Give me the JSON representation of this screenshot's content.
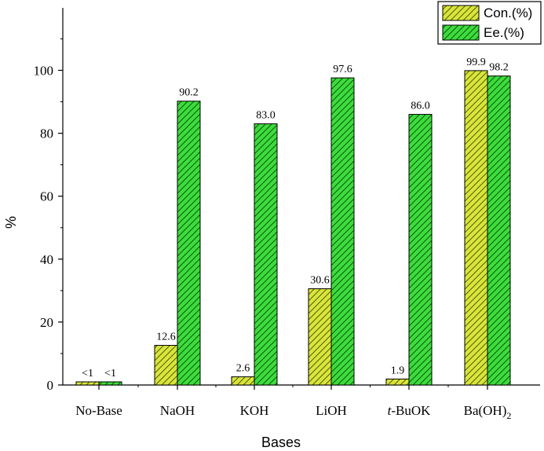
{
  "chart_data": {
    "type": "bar",
    "title": "",
    "xlabel": "Bases",
    "ylabel": "%",
    "ylim": [
      0,
      110
    ],
    "yticks": [
      0,
      20,
      40,
      60,
      80,
      100
    ],
    "categories": [
      {
        "text": "No-Base"
      },
      {
        "text": "NaOH"
      },
      {
        "text": "KOH"
      },
      {
        "text": "LiOH"
      },
      {
        "italic": "t",
        "text": "-BuOK"
      },
      {
        "text": "Ba(OH)",
        "sub": "2"
      }
    ],
    "series": [
      {
        "name": "Con.(%)",
        "color": "#d8e63a",
        "hatch": "diagonal",
        "values": [
          1,
          12.6,
          2.6,
          30.6,
          1.9,
          99.9
        ],
        "labels": [
          "<1",
          "12.6",
          "2.6",
          "30.6",
          "1.9",
          "99.9"
        ]
      },
      {
        "name": "Ee.(%)",
        "color": "#3ddc3d",
        "hatch": "diagonal",
        "values": [
          1,
          90.2,
          83.0,
          97.6,
          86.0,
          98.2
        ],
        "labels": [
          "<1",
          "90.2",
          "83.0",
          "97.6",
          "86.0",
          "98.2"
        ]
      }
    ],
    "legend": "top-right",
    "grid": false
  }
}
